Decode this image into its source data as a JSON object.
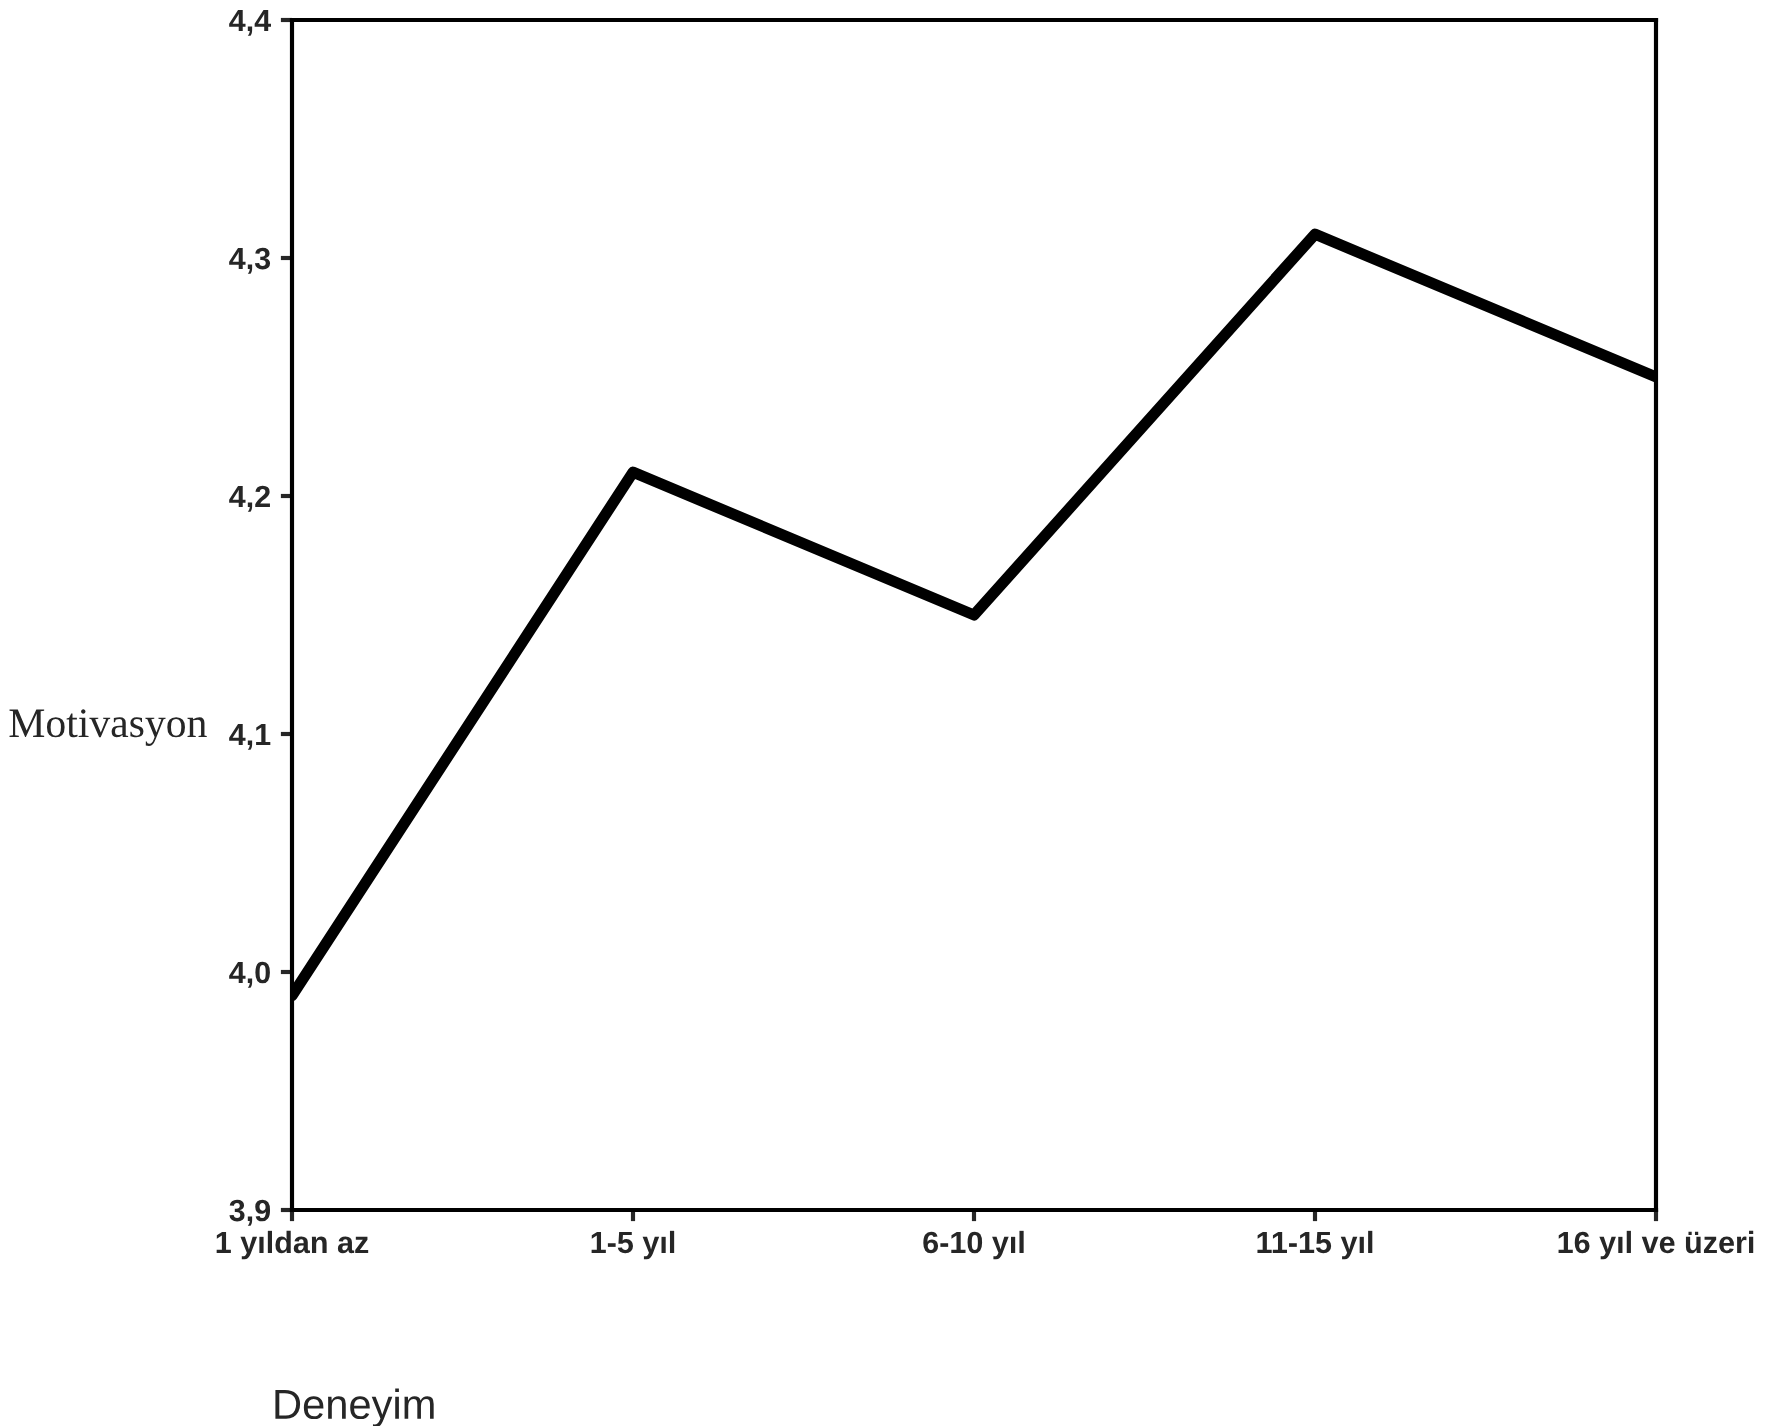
{
  "chart_data": {
    "type": "line",
    "xlabel": "Deneyim",
    "ylabel": "Motivasyon",
    "categories": [
      "1 yıldan az",
      "1-5 yıl",
      "6-10 yıl",
      "11-15 yıl",
      "16 yıl ve üzeri"
    ],
    "series": [
      {
        "color": "#000000",
        "values": [
          3.99,
          4.21,
          4.15,
          4.31,
          4.25
        ]
      }
    ],
    "ylim": [
      3.9,
      4.4
    ],
    "yticks": [
      {
        "value": 3.9,
        "label": "3,9"
      },
      {
        "value": 4.0,
        "label": "4,0"
      },
      {
        "value": 4.1,
        "label": "4,1"
      },
      {
        "value": 4.2,
        "label": "4,2"
      },
      {
        "value": 4.3,
        "label": "4,3"
      },
      {
        "value": 4.4,
        "label": "4,4"
      }
    ],
    "grid": false,
    "legend": false,
    "marker": "none",
    "line_style": "solid"
  }
}
